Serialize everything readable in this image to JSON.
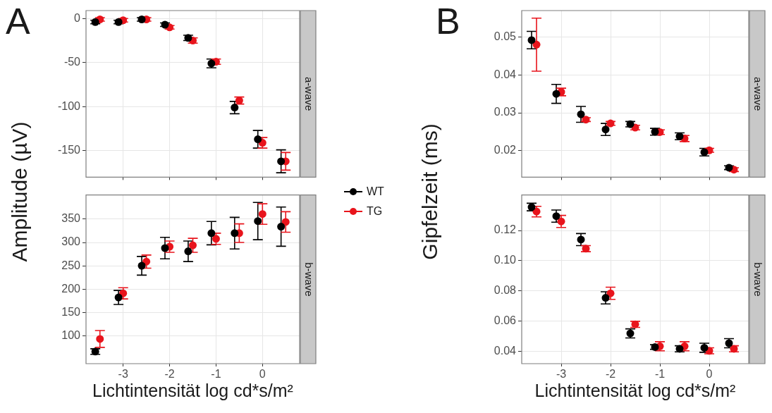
{
  "chart_data": [
    {
      "type": "scatter",
      "title": "a-wave",
      "ylabel": "Amplitude (µV)",
      "annotations": [
        "A"
      ],
      "legend": "right",
      "marker": "circle",
      "grid": true,
      "tick_labels": "y",
      "xlim": [
        -3.8,
        0.8
      ],
      "xticks": [
        -3,
        -2,
        -1,
        0
      ],
      "ylim": [
        -180,
        9
      ],
      "yticks": [
        -150,
        -100,
        -50,
        0
      ],
      "series": [
        {
          "name": "WT",
          "color": "#000000",
          "x": [
            -3.6,
            -3.1,
            -2.6,
            -2.1,
            -1.6,
            -1.1,
            -0.6,
            -0.1,
            0.4
          ],
          "values": [
            -4,
            -4,
            -1,
            -7,
            -22,
            -51,
            -101,
            -137,
            -162
          ],
          "errors": [
            2,
            2,
            2,
            2,
            3,
            5,
            7,
            10,
            13
          ]
        },
        {
          "name": "TG",
          "color": "#e8141c",
          "x": [
            -3.5,
            -3.0,
            -2.5,
            -2.0,
            -1.5,
            -1.0,
            -0.5,
            0.0,
            0.5
          ],
          "values": [
            -1,
            -2,
            -1,
            -10,
            -25,
            -49,
            -93,
            -141,
            -162
          ],
          "errors": [
            2,
            2,
            2,
            2,
            3,
            3,
            4,
            6,
            10
          ]
        }
      ]
    },
    {
      "type": "scatter",
      "title": "b-wave",
      "xlabel": "Lichtintensität log cd*s/m²",
      "marker": "circle",
      "grid": true,
      "xlim": [
        -3.8,
        0.8
      ],
      "xticks": [
        -3,
        -2,
        -1,
        0
      ],
      "ylim": [
        40,
        402
      ],
      "yticks": [
        100,
        150,
        200,
        250,
        300,
        350
      ],
      "series": [
        {
          "color": "#000000",
          "x": [
            -3.6,
            -3.1,
            -2.6,
            -2.1,
            -1.6,
            -1.1,
            -0.6,
            -0.1,
            0.4
          ],
          "values": [
            66,
            182,
            250,
            288,
            281,
            320,
            320,
            346,
            334
          ],
          "errors": [
            6,
            15,
            20,
            23,
            22,
            25,
            34,
            40,
            42
          ]
        },
        {
          "color": "#e8141c",
          "x": [
            -3.5,
            -3.0,
            -2.5,
            -2.0,
            -1.5,
            -1.0,
            -0.5,
            0.0,
            0.5
          ],
          "values": [
            93,
            191,
            259,
            291,
            294,
            308,
            320,
            361,
            344
          ],
          "errors": [
            18,
            12,
            14,
            12,
            15,
            12,
            20,
            22,
            22
          ]
        }
      ]
    },
    {
      "type": "scatter",
      "title": "a-wave",
      "ylabel": "Gipfelzeit  (ms)",
      "annotations": [
        "B"
      ],
      "marker": "circle",
      "grid": true,
      "tick_labels": "y",
      "xlim": [
        -3.8,
        0.8
      ],
      "xticks": [
        -3,
        -2,
        -1,
        0
      ],
      "ylim": [
        0.013,
        0.057
      ],
      "yticks": [
        {
          "value": 0.02,
          "label": "0.02"
        },
        {
          "value": 0.03,
          "label": "0.03"
        },
        {
          "value": 0.04,
          "label": "0.04"
        },
        {
          "value": 0.05,
          "label": "0.05"
        }
      ],
      "series": [
        {
          "color": "#000000",
          "x": [
            -3.6,
            -3.1,
            -2.6,
            -2.1,
            -1.6,
            -1.1,
            -0.6,
            -0.1,
            0.4
          ],
          "values": [
            0.0492,
            0.035,
            0.0296,
            0.0256,
            0.027,
            0.025,
            0.0238,
            0.0196,
            0.0155
          ],
          "errors": [
            0.0023,
            0.0025,
            0.0021,
            0.0016,
            0.0007,
            0.0009,
            0.0009,
            0.001,
            0.0005
          ]
        },
        {
          "color": "#e8141c",
          "x": [
            -3.5,
            -3.0,
            -2.5,
            -2.0,
            -1.5,
            -1.0,
            -0.5,
            0.0,
            0.5
          ],
          "values": [
            0.048,
            0.0355,
            0.0282,
            0.0272,
            0.0261,
            0.0249,
            0.0232,
            0.0201,
            0.015
          ],
          "errors": [
            0.007,
            0.001,
            0.0005,
            0.0005,
            0.0006,
            0.0006,
            0.0008,
            0.0005,
            0.0005
          ]
        }
      ]
    },
    {
      "type": "scatter",
      "title": "b-wave",
      "xlabel": "Lichtintensität log cd*s/m²",
      "marker": "circle",
      "grid": true,
      "xlim": [
        -3.8,
        0.8
      ],
      "xticks": [
        -3,
        -2,
        -1,
        0
      ],
      "ylim": [
        0.032,
        0.1435
      ],
      "yticks": [
        {
          "value": 0.04,
          "label": "0.04"
        },
        {
          "value": 0.06,
          "label": "0.06"
        },
        {
          "value": 0.08,
          "label": "0.08"
        },
        {
          "value": 0.1,
          "label": "0.10"
        },
        {
          "value": 0.12,
          "label": "0.12"
        }
      ],
      "series": [
        {
          "color": "#000000",
          "x": [
            -3.6,
            -3.1,
            -2.6,
            -2.1,
            -1.6,
            -1.1,
            -0.6,
            -0.1,
            0.4
          ],
          "values": [
            0.1355,
            0.1295,
            0.114,
            0.0755,
            0.052,
            0.043,
            0.0418,
            0.0425,
            0.0455
          ],
          "errors": [
            0.0025,
            0.004,
            0.004,
            0.004,
            0.003,
            0.0015,
            0.002,
            0.003,
            0.003
          ]
        },
        {
          "color": "#e8141c",
          "x": [
            -3.5,
            -3.0,
            -2.5,
            -2.0,
            -1.5,
            -1.0,
            -0.5,
            0.0,
            0.5
          ],
          "values": [
            0.1325,
            0.126,
            0.108,
            0.0785,
            0.058,
            0.0435,
            0.0435,
            0.0405,
            0.0418
          ],
          "errors": [
            0.0035,
            0.004,
            0.002,
            0.004,
            0.002,
            0.003,
            0.003,
            0.002,
            0.002
          ]
        }
      ]
    }
  ]
}
